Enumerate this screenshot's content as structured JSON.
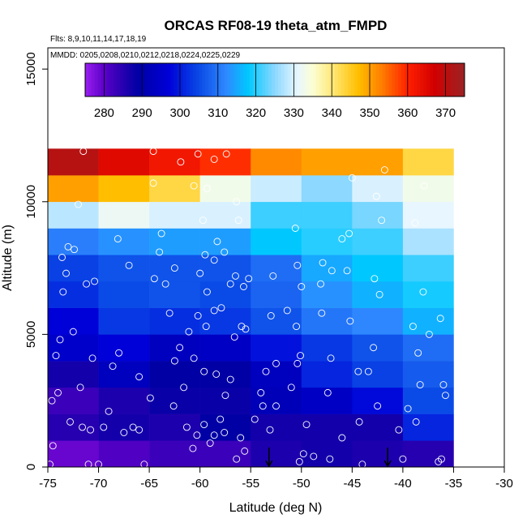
{
  "chart_data": {
    "type": "heatmap",
    "title": "ORCAS RF08-19 theta_atm_FMPD",
    "annotation_flights": "Flts: 8,9,10,11,14,17,18,19",
    "annotation_dates": "MMDD: 0205,0208,0210,0212,0218,0224,0225,0229",
    "xlabel": "Latitude (deg N)",
    "ylabel": "Altitude (m)",
    "xlim": [
      -75,
      -30
    ],
    "ylim": [
      0,
      15800
    ],
    "x_ticks": [
      -75,
      -70,
      -65,
      -60,
      -55,
      -50,
      -45,
      -40,
      -35,
      -30
    ],
    "x_tick_labels": [
      "-75",
      "-70",
      "-65",
      "-60",
      "-55",
      "-50",
      "-45",
      "-40",
      "-35",
      "-30"
    ],
    "y_ticks": [
      0,
      5000,
      10000,
      15000
    ],
    "y_tick_labels": [
      "0",
      "5000",
      "10000",
      "15000"
    ],
    "colorbar": {
      "min": 275,
      "max": 375,
      "ticks": [
        280,
        290,
        300,
        310,
        320,
        330,
        340,
        350,
        360,
        370
      ],
      "tick_labels": [
        "280",
        "290",
        "300",
        "310",
        "320",
        "330",
        "340",
        "350",
        "360",
        "370"
      ]
    },
    "x_bin_edges": [
      -75,
      -70,
      -65,
      -60,
      -55,
      -50,
      -45,
      -40,
      -35
    ],
    "y_bin_edges": [
      0,
      1000,
      2000,
      3000,
      4000,
      5000,
      6000,
      7000,
      8000,
      9000,
      10000,
      11000,
      12000
    ],
    "grid_values": [
      [
        279,
        281,
        283,
        283,
        286,
        287,
        286,
        285
      ],
      [
        285,
        287,
        286,
        289,
        287,
        287,
        287,
        301
      ],
      [
        283,
        286,
        288,
        288,
        292,
        294,
        298,
        305
      ],
      [
        287,
        293,
        289,
        289,
        293,
        301,
        304,
        307
      ],
      [
        295,
        297,
        293,
        294,
        299,
        303,
        306,
        309
      ],
      [
        297,
        303,
        302,
        303,
        306,
        310,
        312,
        316
      ],
      [
        302,
        305,
        306,
        305,
        308,
        313,
        316,
        319
      ],
      [
        304,
        306,
        306,
        306,
        309,
        315,
        318,
        321
      ],
      [
        311,
        313,
        314,
        314,
        318,
        320,
        321,
        327
      ],
      [
        328,
        332,
        330,
        330,
        321,
        321,
        324,
        331
      ],
      [
        350,
        347,
        343,
        333,
        329,
        325,
        330,
        333
      ],
      [
        371,
        365,
        362,
        359,
        352,
        350,
        350,
        343
      ]
    ],
    "markers": [
      {
        "type": "arrow-down",
        "x": -53.2,
        "y": 0
      },
      {
        "type": "arrow-down",
        "x": -41.5,
        "y": 0
      }
    ],
    "points": [
      [
        -74.5,
        800
      ],
      [
        -74.8,
        100
      ],
      [
        -74.6,
        2500
      ],
      [
        -74.0,
        2800
      ],
      [
        -74.2,
        4200
      ],
      [
        -73.8,
        4800
      ],
      [
        -73.5,
        6600
      ],
      [
        -73.2,
        7300
      ],
      [
        -73.0,
        8300
      ],
      [
        -73.6,
        7900
      ],
      [
        -72.4,
        8200
      ],
      [
        -72.0,
        9900
      ],
      [
        -71.5,
        11900
      ],
      [
        -72.5,
        5100
      ],
      [
        -71.8,
        3000
      ],
      [
        -71.6,
        1500
      ],
      [
        -72.8,
        1700
      ],
      [
        -70.6,
        4100
      ],
      [
        -70.4,
        7000
      ],
      [
        -71.2,
        6900
      ],
      [
        -71.0,
        100
      ],
      [
        -70.0,
        100
      ],
      [
        -70.8,
        1400
      ],
      [
        -69.5,
        1500
      ],
      [
        -69.0,
        2100
      ],
      [
        -68.6,
        3800
      ],
      [
        -68.0,
        4300
      ],
      [
        -67.0,
        7600
      ],
      [
        -68.1,
        8600
      ],
      [
        -66.0,
        3400
      ],
      [
        -67.5,
        1300
      ],
      [
        -66.6,
        1500
      ],
      [
        -66.0,
        1400
      ],
      [
        -65.5,
        100
      ],
      [
        -64.9,
        2600
      ],
      [
        -64.6,
        11900
      ],
      [
        -64.6,
        10700
      ],
      [
        -63.8,
        8800
      ],
      [
        -64.0,
        8100
      ],
      [
        -64.5,
        7100
      ],
      [
        -63.4,
        6900
      ],
      [
        -62.5,
        7500
      ],
      [
        -63.0,
        5800
      ],
      [
        -62.0,
        4500
      ],
      [
        -62.5,
        4000
      ],
      [
        -61.6,
        3000
      ],
      [
        -62.6,
        2300
      ],
      [
        -61.3,
        1500
      ],
      [
        -60.7,
        700
      ],
      [
        -60.3,
        1200
      ],
      [
        -59.6,
        1600
      ],
      [
        -59.0,
        900
      ],
      [
        -58.6,
        1200
      ],
      [
        -58.0,
        1800
      ],
      [
        -57.6,
        1300
      ],
      [
        -56.4,
        300
      ],
      [
        -56.0,
        1100
      ],
      [
        -55.6,
        600
      ],
      [
        -59.6,
        3600
      ],
      [
        -58.4,
        3500
      ],
      [
        -57.5,
        2700
      ],
      [
        -57.0,
        3300
      ],
      [
        -56.6,
        4900
      ],
      [
        -55.9,
        5300
      ],
      [
        -55.5,
        5200
      ],
      [
        -57.9,
        6000
      ],
      [
        -57.0,
        6900
      ],
      [
        -56.5,
        7200
      ],
      [
        -55.7,
        6800
      ],
      [
        -55.2,
        7100
      ],
      [
        -59.3,
        6600
      ],
      [
        -60.0,
        7300
      ],
      [
        -59.5,
        8000
      ],
      [
        -58.6,
        7800
      ],
      [
        -57.6,
        8100
      ],
      [
        -58.3,
        8500
      ],
      [
        -59.7,
        9300
      ],
      [
        -59.3,
        10500
      ],
      [
        -58.6,
        11600
      ],
      [
        -57.4,
        11800
      ],
      [
        -56.4,
        10000
      ],
      [
        -56.2,
        9300
      ],
      [
        -60.2,
        11800
      ],
      [
        -61.9,
        11500
      ],
      [
        -60.6,
        10600
      ],
      [
        -60.6,
        4100
      ],
      [
        -61.1,
        5100
      ],
      [
        -60.2,
        5700
      ],
      [
        -59.4,
        5300
      ],
      [
        -58.6,
        5900
      ],
      [
        -53.0,
        5700
      ],
      [
        -52.8,
        7200
      ],
      [
        -51.4,
        5900
      ],
      [
        -50.4,
        7600
      ],
      [
        -50.6,
        9000
      ],
      [
        -50.0,
        6800
      ],
      [
        -50.5,
        5300
      ],
      [
        -50.1,
        4200
      ],
      [
        -50.4,
        3900
      ],
      [
        -51.0,
        3000
      ],
      [
        -52.5,
        3900
      ],
      [
        -53.5,
        3600
      ],
      [
        -54.0,
        2800
      ],
      [
        -53.8,
        2300
      ],
      [
        -52.5,
        2300
      ],
      [
        -53.1,
        1400
      ],
      [
        -54.6,
        1800
      ],
      [
        -49.5,
        1600
      ],
      [
        -49.8,
        500
      ],
      [
        -50.2,
        200
      ],
      [
        -48.8,
        400
      ],
      [
        -47.4,
        2800
      ],
      [
        -47.1,
        4100
      ],
      [
        -48.0,
        5800
      ],
      [
        -48.1,
        6900
      ],
      [
        -47.0,
        7400
      ],
      [
        -47.9,
        7700
      ],
      [
        -45.5,
        7400
      ],
      [
        -46.0,
        8600
      ],
      [
        -45.3,
        8800
      ],
      [
        -45.2,
        5500
      ],
      [
        -44.4,
        3600
      ],
      [
        -44.3,
        1700
      ],
      [
        -44.0,
        100
      ],
      [
        -42.9,
        4500
      ],
      [
        -43.4,
        3600
      ],
      [
        -42.3,
        6500
      ],
      [
        -42.8,
        7100
      ],
      [
        -42.1,
        9300
      ],
      [
        -41.8,
        11200
      ],
      [
        -42.6,
        10200
      ],
      [
        -38.7,
        1700
      ],
      [
        -38.5,
        4300
      ],
      [
        -39.0,
        5300
      ],
      [
        -38.0,
        6600
      ],
      [
        -38.8,
        9200
      ],
      [
        -37.9,
        10600
      ],
      [
        -37.4,
        5000
      ],
      [
        -36.3,
        5600
      ],
      [
        -36.0,
        3100
      ],
      [
        -35.8,
        2700
      ],
      [
        -36.5,
        200
      ],
      [
        -36.2,
        300
      ],
      [
        -45.0,
        10900
      ],
      [
        -40.0,
        300
      ],
      [
        -40.4,
        1400
      ],
      [
        -39.5,
        2200
      ],
      [
        -38.3,
        3100
      ],
      [
        -42.5,
        2300
      ],
      [
        -46.0,
        1100
      ],
      [
        -47.2,
        300
      ]
    ]
  }
}
